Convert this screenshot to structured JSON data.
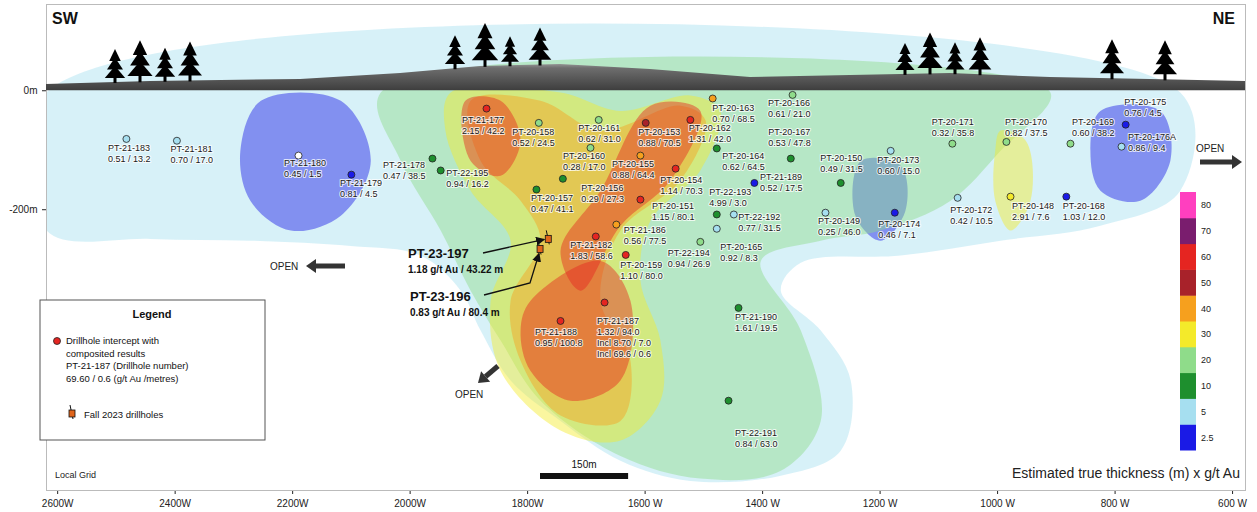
{
  "chart_data": {
    "type": "scatter",
    "corner_labels": [
      "SW",
      "NE"
    ],
    "xlim": [
      2619,
      578
    ],
    "xticks": [
      {
        "value": 2600,
        "label": "2600W"
      },
      {
        "value": 2400,
        "label": "2400W"
      },
      {
        "value": 2200,
        "label": "2200W"
      },
      {
        "value": 2000,
        "label": "2000W"
      },
      {
        "value": 1800,
        "label": "1800W"
      },
      {
        "value": 1600,
        "label": "1600 W"
      },
      {
        "value": 1400,
        "label": "1400 W"
      },
      {
        "value": 1200,
        "label": "1200 W"
      },
      {
        "value": 1000,
        "label": "1000 W"
      },
      {
        "value": 800,
        "label": "800 W"
      },
      {
        "value": 600,
        "label": "600 W"
      }
    ],
    "ylim": [
      -672,
      145
    ],
    "yticks": [
      {
        "value": 0,
        "label": "0m"
      },
      {
        "value": -200,
        "label": "-200m"
      }
    ],
    "drillholes": {
      "names": [
        "PT-21-183",
        "PT-21-181",
        "PT-21-180",
        "PT-21-179",
        "PT-21-178",
        "PT-21-177",
        "PT-22-195",
        "PT-20-158",
        "PT-20-161",
        "PT-20-160",
        "PT-20-153",
        "PT-20-162",
        "PT-20-163",
        "PT-20-166",
        "PT-20-167",
        "PT-20-164",
        "PT-20-155",
        "PT-20-154",
        "PT-20-157",
        "PT-20-156",
        "PT-20-151",
        "PT-22-193",
        "PT-22-192",
        "PT-21-189",
        "PT-21-186",
        "PT-21-182",
        "PT-22-194",
        "PT-20-165",
        "PT-20-159",
        "PT-21-188",
        "PT-21-187",
        "PT-21-190",
        "PT-22-191",
        "PT-20-150",
        "PT-20-173",
        "PT-20-171",
        "PT-20-170",
        "PT-20-169",
        "PT-20-175",
        "PT-20-176A",
        "PT-20-148",
        "PT-20-168",
        "PT-20-172",
        "PT-20-149",
        "PT-20-174"
      ],
      "x": [
        2483,
        2397,
        2190,
        2100,
        1962,
        1870,
        1948,
        1781,
        1679,
        1693,
        1599,
        1523,
        1485,
        1349,
        1352,
        1478,
        1608,
        1548,
        1785,
        1740,
        1608,
        1478,
        1449,
        1414,
        1649,
        1684,
        1506,
        1478,
        1633,
        1744,
        1669,
        1441,
        1458,
        1267,
        1182,
        1077,
        985,
        876,
        782,
        789,
        978,
        883,
        1068,
        1293,
        1175
      ],
      "y": [
        -81,
        -84,
        -109,
        -141,
        -114,
        -30,
        -134,
        -54,
        -49,
        -96,
        -54,
        -49,
        -13,
        -7,
        -114,
        -97,
        -109,
        -131,
        -166,
        -148,
        -183,
        -208,
        -208,
        -155,
        -225,
        -245,
        -254,
        -232,
        -276,
        -387,
        -356,
        -365,
        -521,
        -155,
        -101,
        -89,
        -86,
        -89,
        -57,
        -94,
        -178,
        -178,
        -180,
        -205,
        -205
      ],
      "labels": [
        [
          "0.51 / 13.2"
        ],
        [
          "0.70 / 17.0"
        ],
        [
          "0.45 / 1.5"
        ],
        [
          "0.81 / 4.5"
        ],
        [
          "0.47 / 38.5"
        ],
        [
          "2.15 / 42.2"
        ],
        [
          "0.94 / 16.2"
        ],
        [
          "0.52 / 24.5"
        ],
        [
          "0.62 / 31.0"
        ],
        [
          "0.28 / 17.0"
        ],
        [
          "0.88 / 70.5"
        ],
        [
          "1.31 / 42.0"
        ],
        [
          "0.70 / 68.5"
        ],
        [
          "0.61 / 21.0"
        ],
        [
          "0.53 / 47.8"
        ],
        [
          "0.62 / 64.5"
        ],
        [
          "0.88 / 64.4"
        ],
        [
          "1.14 / 70.3"
        ],
        [
          "0.47 / 41.1"
        ],
        [
          "0.29 / 27.3"
        ],
        [
          "1.15 / 80.1"
        ],
        [
          "4.99 / 3.0"
        ],
        [
          "0.77 / 31.5"
        ],
        [
          "0.52 / 17.5"
        ],
        [
          "0.56 / 77.5"
        ],
        [
          "1.83 / 58.6"
        ],
        [
          "0.94 / 26.9"
        ],
        [
          "0.92 / 8.3"
        ],
        [
          "1.10 / 80.0"
        ],
        [
          "0.95 / 100.8"
        ],
        [
          "1.32 / 94.0",
          "Incl 8.70 / 7.0",
          "Incl 69.6 / 0.6"
        ],
        [
          "1.61 / 19.5"
        ],
        [
          "0.84 / 63.0"
        ],
        [
          "0.49 / 31.5"
        ],
        [
          "0.60 / 15.0"
        ],
        [
          "0.32 / 35.8"
        ],
        [
          "0.82 / 37.5"
        ],
        [
          "0.60 / 38.2"
        ],
        [
          "0.76 / 4.5"
        ],
        [
          "0.86 / 9.4"
        ],
        [
          "2.91 / 7.6"
        ],
        [
          "1.03 / 12.0"
        ],
        [
          "0.42 / 10.5"
        ],
        [
          "0.25 / 46.0"
        ],
        [
          "0.46 / 7.1"
        ]
      ],
      "colors": [
        "#a6dff0",
        "#a6dff0",
        "#ffffff",
        "#1a1ae6",
        "#1e8f2e",
        "#e52521",
        "#1e8f2e",
        "#8fdc8a",
        "#8fdc8a",
        "#8fdc8a",
        "#a8222a",
        "#e52521",
        "#f6a01e",
        "#8fdc8a",
        "#1e8f2e",
        "#1e8f2e",
        "#f6a01e",
        "#e52521",
        "#1e8f2e",
        "#1e8f2e",
        "#e52521",
        "#1e8f2e",
        "#a6dff0",
        "#1a1ae6",
        "#f6a01e",
        "#e52521",
        "#8fdc8a",
        "#a6dff0",
        "#e52521",
        "#e52521",
        "#e52521",
        "#1e8f2e",
        "#1e8f2e",
        "#1e8f2e",
        "#a6dff0",
        "#8fdc8a",
        "#8fdc8a",
        "#8fdc8a",
        "#1a1ae6",
        "#a6dff0",
        "#f4ea2a",
        "#1a1ae6",
        "#a6dff0",
        "#a6dff0",
        "#1a1ae6"
      ]
    },
    "fall_2023": {
      "names": [
        "PT-23-197",
        "PT-23-196"
      ],
      "x": [
        1764,
        1778
      ],
      "y": [
        -249,
        -266
      ],
      "labels": [
        "1.18 g/t Au / 43.22 m",
        "0.83 g/t Au / 80.4 m"
      ]
    },
    "zones": [
      {
        "value": 5,
        "points": [
          [
            2619,
            -3
          ],
          [
            689,
            -3
          ],
          [
            689,
            -168
          ],
          [
            825,
            -227
          ],
          [
            995,
            -252
          ],
          [
            1165,
            -277
          ],
          [
            1335,
            -289
          ],
          [
            1369,
            -336
          ],
          [
            1301,
            -403
          ],
          [
            1250,
            -487
          ],
          [
            1267,
            -605
          ],
          [
            1369,
            -647
          ],
          [
            1523,
            -656
          ],
          [
            1642,
            -622
          ],
          [
            1744,
            -555
          ],
          [
            1829,
            -487
          ],
          [
            1880,
            -403
          ],
          [
            1914,
            -336
          ],
          [
            1982,
            -277
          ],
          [
            2101,
            -261
          ],
          [
            2272,
            -252
          ],
          [
            2442,
            -249
          ],
          [
            2619,
            -235
          ]
        ]
      },
      {
        "value": 2.5,
        "points": [
          [
            2254,
            -17
          ],
          [
            2118,
            -17
          ],
          [
            2067,
            -118
          ],
          [
            2118,
            -210
          ],
          [
            2203,
            -235
          ],
          [
            2272,
            -185
          ],
          [
            2289,
            -101
          ]
        ]
      },
      {
        "value": 2.5,
        "points": [
          [
            825,
            -34
          ],
          [
            723,
            -34
          ],
          [
            706,
            -118
          ],
          [
            757,
            -185
          ],
          [
            825,
            -168
          ],
          [
            842,
            -101
          ]
        ]
      },
      {
        "value": 2.5,
        "points": [
          [
            1233,
            -118
          ],
          [
            1165,
            -126
          ],
          [
            1157,
            -202
          ],
          [
            1199,
            -252
          ],
          [
            1242,
            -210
          ]
        ]
      },
      {
        "value": 20,
        "points": [
          [
            2050,
            -3
          ],
          [
            910,
            -3
          ],
          [
            995,
            -101
          ],
          [
            1080,
            -185
          ],
          [
            1199,
            -235
          ],
          [
            1301,
            -252
          ],
          [
            1403,
            -286
          ],
          [
            1335,
            -403
          ],
          [
            1301,
            -555
          ],
          [
            1369,
            -639
          ],
          [
            1506,
            -652
          ],
          [
            1642,
            -614
          ],
          [
            1778,
            -521
          ],
          [
            1846,
            -420
          ],
          [
            1897,
            -336
          ],
          [
            1948,
            -235
          ],
          [
            2016,
            -118
          ]
        ]
      },
      {
        "value": 30,
        "points": [
          [
            995,
            -67
          ],
          [
            952,
            -84
          ],
          [
            944,
            -185
          ],
          [
            978,
            -235
          ],
          [
            1004,
            -185
          ],
          [
            1004,
            -101
          ]
        ]
      },
      {
        "value": 30,
        "points": [
          [
            1931,
            -3
          ],
          [
            1744,
            -3
          ],
          [
            1642,
            -34
          ],
          [
            1523,
            -8
          ],
          [
            1472,
            -34
          ],
          [
            1506,
            -134
          ],
          [
            1591,
            -219
          ],
          [
            1608,
            -319
          ],
          [
            1574,
            -420
          ],
          [
            1574,
            -521
          ],
          [
            1642,
            -588
          ],
          [
            1744,
            -571
          ],
          [
            1846,
            -471
          ],
          [
            1863,
            -353
          ],
          [
            1829,
            -252
          ],
          [
            1897,
            -168
          ],
          [
            1940,
            -67
          ]
        ]
      },
      {
        "value": 40,
        "points": [
          [
            1897,
            -17
          ],
          [
            1778,
            -17
          ],
          [
            1676,
            -67
          ],
          [
            1540,
            -25
          ],
          [
            1497,
            -50
          ],
          [
            1540,
            -151
          ],
          [
            1642,
            -235
          ],
          [
            1676,
            -353
          ],
          [
            1625,
            -454
          ],
          [
            1642,
            -555
          ],
          [
            1744,
            -546
          ],
          [
            1812,
            -454
          ],
          [
            1829,
            -353
          ],
          [
            1778,
            -252
          ],
          [
            1812,
            -185
          ],
          [
            1880,
            -118
          ]
        ]
      },
      {
        "value": 60,
        "points": [
          [
            1906,
            -17
          ],
          [
            1846,
            -17
          ],
          [
            1812,
            -84
          ],
          [
            1846,
            -143
          ],
          [
            1897,
            -118
          ]
        ]
      },
      {
        "value": 60,
        "points": [
          [
            1591,
            -25
          ],
          [
            1506,
            -34
          ],
          [
            1557,
            -151
          ],
          [
            1642,
            -227
          ],
          [
            1710,
            -336
          ],
          [
            1744,
            -269
          ],
          [
            1676,
            -168
          ]
        ]
      },
      {
        "value": 60,
        "points": [
          [
            1795,
            -353
          ],
          [
            1676,
            -286
          ],
          [
            1625,
            -353
          ],
          [
            1642,
            -487
          ],
          [
            1727,
            -521
          ],
          [
            1795,
            -471
          ],
          [
            1812,
            -403
          ]
        ]
      }
    ],
    "colorbar": {
      "title": "Estimated true thickness (m) x g/t Au",
      "ticks": [
        2.5,
        5,
        10,
        20,
        30,
        40,
        50,
        60,
        70,
        80
      ],
      "colors": [
        "#1a1ae6",
        "#a6dff0",
        "#1e8f2e",
        "#8fdc8a",
        "#f4ea2a",
        "#f6a01e",
        "#a8222a",
        "#e52521",
        "#7a1d6e",
        "#ff3fbf"
      ]
    },
    "open_labels": [
      "OPEN",
      "OPEN",
      "OPEN"
    ],
    "grid_label": "Local Grid",
    "scale_bar": {
      "length": 150,
      "label": "150m"
    },
    "legend_box": {
      "title": "Legend",
      "entries": [
        {
          "lines": [
            "Drillhole intercept with",
            "composited results",
            "PT-21-187 (Drillhole number)",
            "69.60 / 0.6 (g/t Au /metres)"
          ],
          "color": "#e52521"
        },
        {
          "lines": [
            "Fall 2023 drillholes"
          ]
        }
      ]
    }
  }
}
